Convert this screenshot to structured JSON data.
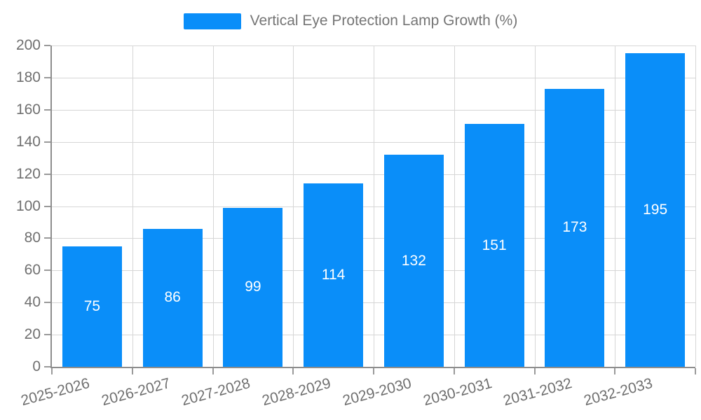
{
  "legend": {
    "label": "Vertical Eye Protection Lamp Growth (%)"
  },
  "colors": {
    "bar": "#0a8ef9",
    "grid": "#d6d6d6",
    "axis_line": "#8d8d8d",
    "axis_text": "#6f6f6f",
    "legend_text": "#757575",
    "value_label": "#ffffff",
    "background": "#ffffff"
  },
  "chart_data": {
    "type": "bar",
    "title": "",
    "xlabel": "",
    "ylabel": "",
    "categories": [
      "2025-2026",
      "2026-2027",
      "2027-2028",
      "2028-2029",
      "2029-2030",
      "2030-2031",
      "2031-2032",
      "2032-2033"
    ],
    "values": [
      75,
      86,
      99,
      114,
      132,
      151,
      173,
      195
    ],
    "series_name": "Vertical Eye Protection Lamp Growth (%)",
    "ylim": [
      0,
      200
    ],
    "yticks": [
      0,
      20,
      40,
      60,
      80,
      100,
      120,
      140,
      160,
      180,
      200
    ],
    "grid": true,
    "gridlines": "horizontal at each ytick, vertical at category boundaries",
    "legend_position": "top-center",
    "value_labels": "white, centered inside bars",
    "x_label_rotation_deg": -15
  }
}
